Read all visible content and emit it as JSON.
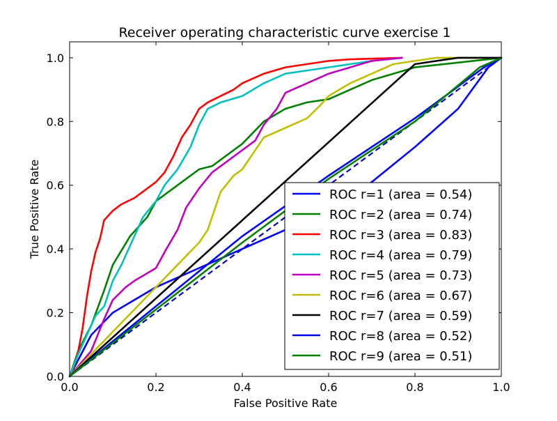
{
  "chart_data": {
    "type": "line",
    "title": "Receiver operating characteristic curve exercise 1",
    "xlabel": "False Positive Rate",
    "ylabel": "True Positive Rate",
    "xlim": [
      0.0,
      1.0
    ],
    "ylim": [
      0.0,
      1.05
    ],
    "xticks": [
      "0.0",
      "0.2",
      "0.4",
      "0.6",
      "0.8",
      "1.0"
    ],
    "yticks": [
      "0.0",
      "0.2",
      "0.4",
      "0.6",
      "0.8",
      "1.0"
    ],
    "grid": false,
    "legend_position": "lower right",
    "reference_line": {
      "x": [
        0,
        1
      ],
      "y": [
        0,
        1
      ],
      "color": "#0000bf",
      "style": "dashed"
    },
    "series": [
      {
        "name": "ROC r=1 (area = 0.54)",
        "color": "#0000ff",
        "x": [
          0,
          0.05,
          0.1,
          0.2,
          0.3,
          0.5,
          0.6,
          0.7,
          0.8,
          0.9,
          0.97,
          1.0
        ],
        "y": [
          0,
          0.13,
          0.2,
          0.28,
          0.34,
          0.46,
          0.52,
          0.61,
          0.72,
          0.84,
          0.97,
          1.0
        ]
      },
      {
        "name": "ROC r=2 (area = 0.74)",
        "color": "#008000",
        "x": [
          0,
          0.02,
          0.05,
          0.08,
          0.1,
          0.14,
          0.18,
          0.2,
          0.25,
          0.3,
          0.33,
          0.4,
          0.45,
          0.5,
          0.55,
          0.6,
          0.65,
          0.7,
          0.75,
          0.8,
          1.0
        ],
        "y": [
          0,
          0.08,
          0.16,
          0.27,
          0.35,
          0.44,
          0.5,
          0.55,
          0.6,
          0.65,
          0.66,
          0.73,
          0.8,
          0.84,
          0.86,
          0.87,
          0.9,
          0.93,
          0.95,
          0.97,
          1.0
        ]
      },
      {
        "name": "ROC r=3 (area = 0.83)",
        "color": "#ff0000",
        "x": [
          0,
          0.01,
          0.02,
          0.03,
          0.04,
          0.05,
          0.06,
          0.07,
          0.08,
          0.1,
          0.12,
          0.15,
          0.18,
          0.2,
          0.22,
          0.24,
          0.26,
          0.28,
          0.3,
          0.32,
          0.35,
          0.38,
          0.4,
          0.45,
          0.5,
          0.55,
          0.6,
          0.65,
          0.77
        ],
        "y": [
          0,
          0.03,
          0.08,
          0.15,
          0.25,
          0.33,
          0.39,
          0.43,
          0.49,
          0.52,
          0.54,
          0.56,
          0.59,
          0.61,
          0.64,
          0.69,
          0.75,
          0.79,
          0.84,
          0.86,
          0.88,
          0.9,
          0.92,
          0.95,
          0.97,
          0.98,
          0.99,
          0.995,
          1.0
        ]
      },
      {
        "name": "ROC r=4 (area = 0.79)",
        "color": "#00bfbf",
        "x": [
          0,
          0.02,
          0.04,
          0.06,
          0.08,
          0.1,
          0.12,
          0.15,
          0.17,
          0.2,
          0.22,
          0.25,
          0.28,
          0.3,
          0.32,
          0.35,
          0.4,
          0.45,
          0.5,
          0.55,
          0.6,
          0.65,
          0.7,
          0.77
        ],
        "y": [
          0,
          0.07,
          0.13,
          0.19,
          0.22,
          0.3,
          0.35,
          0.44,
          0.5,
          0.55,
          0.6,
          0.65,
          0.72,
          0.79,
          0.84,
          0.86,
          0.88,
          0.92,
          0.95,
          0.96,
          0.97,
          0.98,
          0.99,
          1.0
        ]
      },
      {
        "name": "ROC r=5 (area = 0.73)",
        "color": "#bf00bf",
        "x": [
          0,
          0.05,
          0.08,
          0.1,
          0.13,
          0.15,
          0.2,
          0.22,
          0.25,
          0.27,
          0.3,
          0.33,
          0.38,
          0.43,
          0.45,
          0.48,
          0.5,
          0.55,
          0.6,
          0.65,
          0.7,
          0.77
        ],
        "y": [
          0,
          0.08,
          0.18,
          0.24,
          0.28,
          0.3,
          0.34,
          0.39,
          0.46,
          0.53,
          0.59,
          0.64,
          0.69,
          0.74,
          0.79,
          0.84,
          0.89,
          0.92,
          0.95,
          0.97,
          0.99,
          1.0
        ]
      },
      {
        "name": "ROC r=6 (area = 0.67)",
        "color": "#bfbf00",
        "x": [
          0,
          0.1,
          0.2,
          0.3,
          0.32,
          0.35,
          0.38,
          0.4,
          0.43,
          0.45,
          0.5,
          0.55,
          0.58,
          0.6,
          0.65,
          0.7,
          0.75,
          0.8,
          0.85,
          0.9,
          1.0
        ],
        "y": [
          0,
          0.14,
          0.28,
          0.42,
          0.46,
          0.58,
          0.63,
          0.65,
          0.71,
          0.75,
          0.78,
          0.81,
          0.85,
          0.88,
          0.92,
          0.95,
          0.98,
          0.99,
          1.0,
          1.0,
          1.0
        ]
      },
      {
        "name": "ROC r=7 (area = 0.59)",
        "color": "#000000",
        "x": [
          0,
          0.8,
          0.85,
          0.9,
          1.0
        ],
        "y": [
          0,
          0.98,
          0.99,
          1.0,
          1.0
        ]
      },
      {
        "name": "ROC r=8 (area = 0.52)",
        "color": "#0000ff",
        "x": [
          0,
          0.2,
          0.4,
          0.6,
          0.8,
          0.96,
          1.0
        ],
        "y": [
          0,
          0.22,
          0.44,
          0.63,
          0.81,
          0.97,
          1.0
        ]
      },
      {
        "name": "ROC r=9 (area = 0.51)",
        "color": "#008000",
        "x": [
          0,
          0.2,
          0.4,
          0.6,
          0.8,
          0.95,
          1.0
        ],
        "y": [
          0,
          0.21,
          0.42,
          0.62,
          0.8,
          0.97,
          1.0
        ]
      }
    ]
  }
}
